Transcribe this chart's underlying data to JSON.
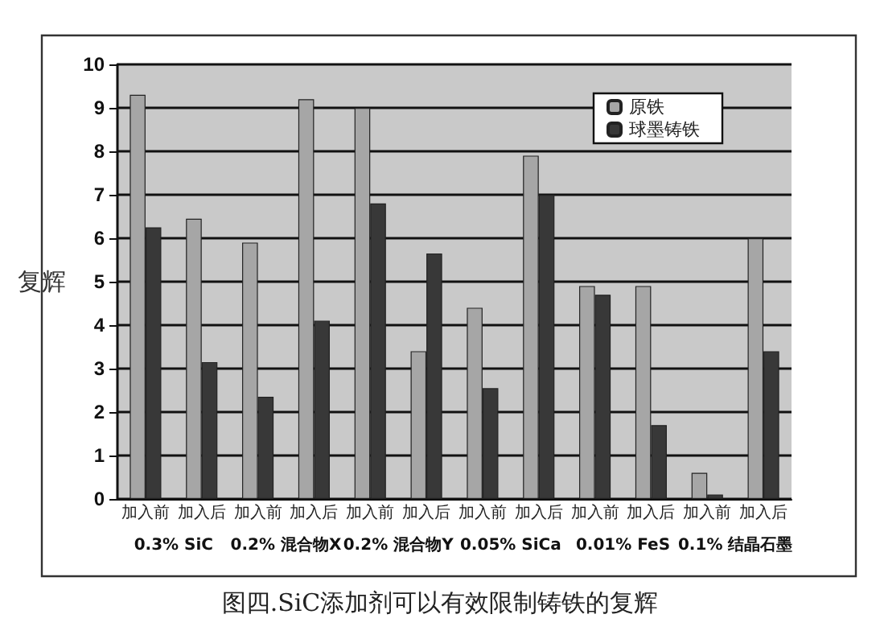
{
  "chart_data": {
    "type": "bar",
    "title": "图四.SiC添加剂可以有效限制铸铁的复辉",
    "ylabel": "复辉",
    "categories": [
      "加入前",
      "加入后",
      "加入前",
      "加入后",
      "加入前",
      "加入后",
      "加入前",
      "加入后",
      "加入前",
      "加入后",
      "加入前",
      "加入后"
    ],
    "annotations": [
      "0.3% SiC",
      "0.2% 混合物X",
      "0.2% 混合物Y",
      "0.05% SiCa",
      "0.01% FeS",
      "0.1% 结晶石墨"
    ],
    "series": [
      {
        "name": "原铁",
        "color": "#a6a6a6",
        "values": [
          9.3,
          6.45,
          5.9,
          9.2,
          9.0,
          3.4,
          4.4,
          7.9,
          4.9,
          4.9,
          0.6,
          6.0
        ]
      },
      {
        "name": "球墨铸铁",
        "color": "#383838",
        "values": [
          6.25,
          3.15,
          2.35,
          4.1,
          6.8,
          5.65,
          2.55,
          7.0,
          4.7,
          1.7,
          0.1,
          3.4
        ]
      }
    ],
    "ylim": [
      0,
      10
    ],
    "yticks": [
      0,
      1,
      2,
      3,
      4,
      5,
      6,
      7,
      8,
      9,
      10
    ],
    "grid": "y",
    "legend": "top right"
  }
}
